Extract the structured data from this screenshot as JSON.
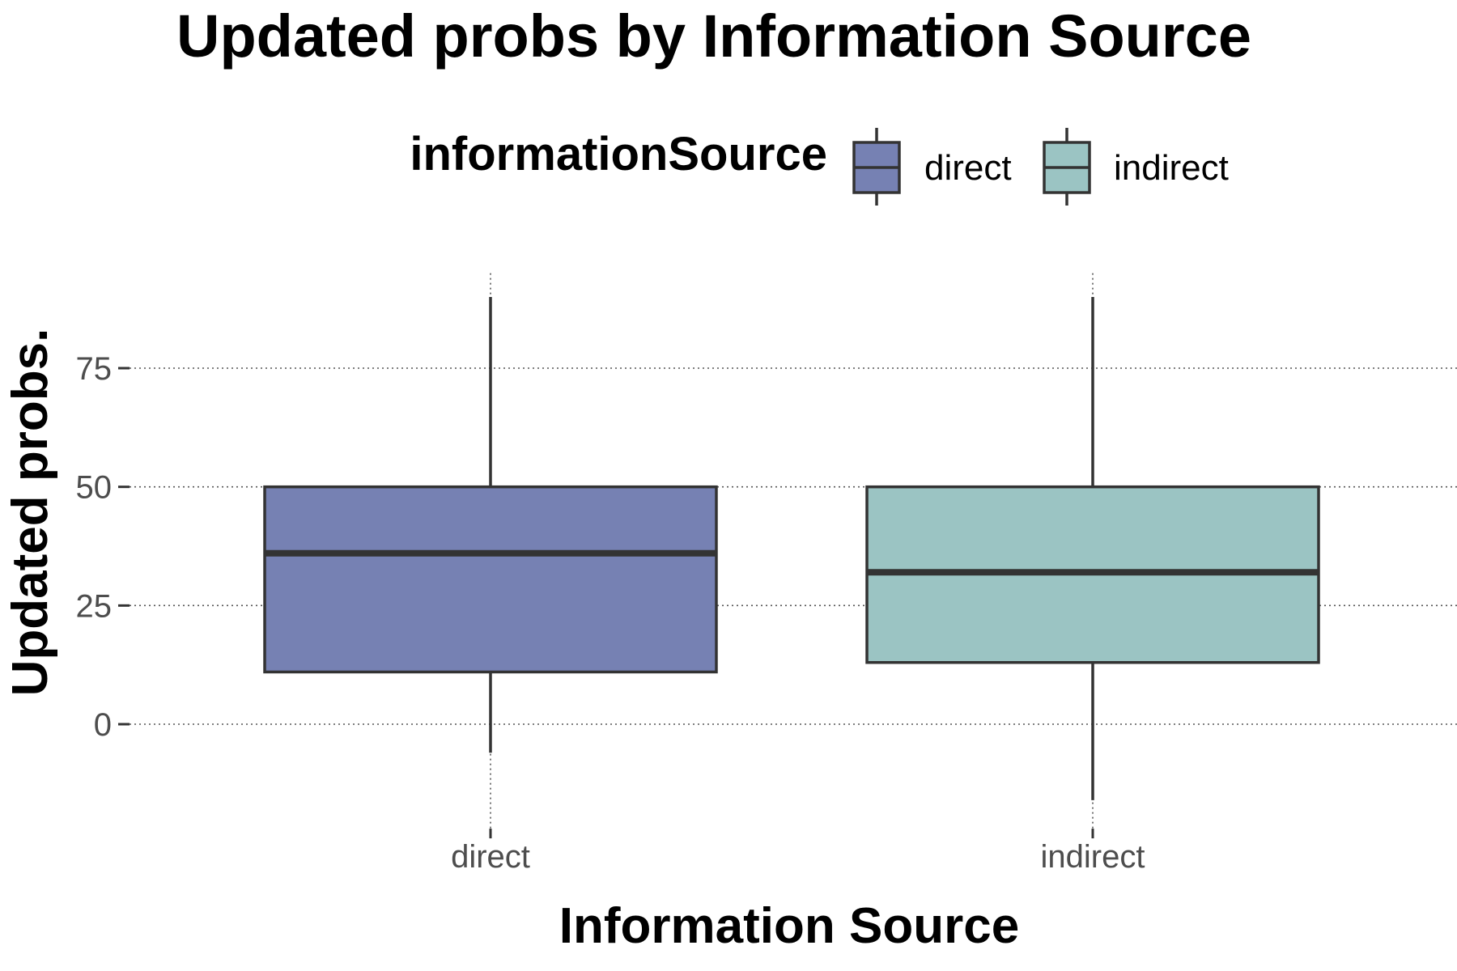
{
  "chart_data": {
    "type": "box",
    "title": "Updated probs by Information Source",
    "xlabel": "Information Source",
    "ylabel": "Updated probs.",
    "categories": [
      "direct",
      "indirect"
    ],
    "boxes": [
      {
        "category": "direct",
        "whisker_low": -6,
        "q1": 11,
        "median": 36,
        "q3": 50,
        "whisker_high": 90,
        "fill": "#7681b3"
      },
      {
        "category": "indirect",
        "whisker_low": -16,
        "q1": 13,
        "median": 32,
        "q3": 50,
        "whisker_high": 90,
        "fill": "#9bc4c3"
      }
    ],
    "yticks": [
      0,
      25,
      50,
      75
    ],
    "ylim": [
      -22,
      95
    ],
    "grid": "dotted",
    "legend": {
      "title": "informationSource",
      "position": "top",
      "entries": [
        {
          "label": "direct",
          "fill": "#7681b3"
        },
        {
          "label": "indirect",
          "fill": "#9bc4c3"
        }
      ]
    },
    "colors": {
      "box_outline": "#333333",
      "grid": "#555555",
      "tick_text": "#4d4d4d"
    }
  }
}
